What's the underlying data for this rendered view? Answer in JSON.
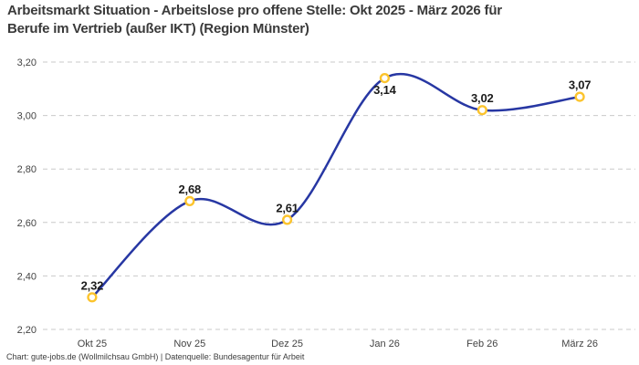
{
  "header": {
    "title_line1": "Arbeitsmarkt Situation - Arbeitslose pro offene Stelle: Okt 2025 - März 2026 für",
    "title_line2": "Berufe im Vertrieb (außer IKT) (Region Münster)"
  },
  "footer": {
    "text": "Chart: gute-jobs.de (Wollmilchsau GmbH) | Datenquelle: Bundesagentur für Arbeit"
  },
  "chart_data": {
    "type": "line",
    "title": "Arbeitsmarkt Situation - Arbeitslose pro offene Stelle: Okt 2025 - März 2026 für Berufe im Vertrieb (außer IKT) (Region Münster)",
    "categories": [
      "Okt 25",
      "Nov 25",
      "Dez 25",
      "Jan 26",
      "Feb 26",
      "März 26"
    ],
    "values": [
      2.32,
      2.68,
      2.61,
      3.14,
      3.02,
      3.07
    ],
    "point_labels": [
      "2,32",
      "2,68",
      "2,61",
      "3,14",
      "3,02",
      "3,07"
    ],
    "label_positions": [
      "above",
      "above",
      "above",
      "below",
      "above",
      "above"
    ],
    "y_ticks": [
      {
        "label": "3,20",
        "value": 3.2
      },
      {
        "label": "3,00",
        "value": 3.0
      },
      {
        "label": "2,80",
        "value": 2.8
      },
      {
        "label": "2,60",
        "value": 2.6
      },
      {
        "label": "2,40",
        "value": 2.4
      },
      {
        "label": "2,20",
        "value": 2.2
      }
    ],
    "ylim": [
      2.2,
      3.2
    ],
    "xlabel": "",
    "ylabel": "",
    "grid": "horizontal-dashed",
    "legend": "none",
    "line_style": "smooth",
    "colors": {
      "line": "#2737a3",
      "marker": "#fcc42d",
      "grid": "#c9c9c9"
    }
  }
}
